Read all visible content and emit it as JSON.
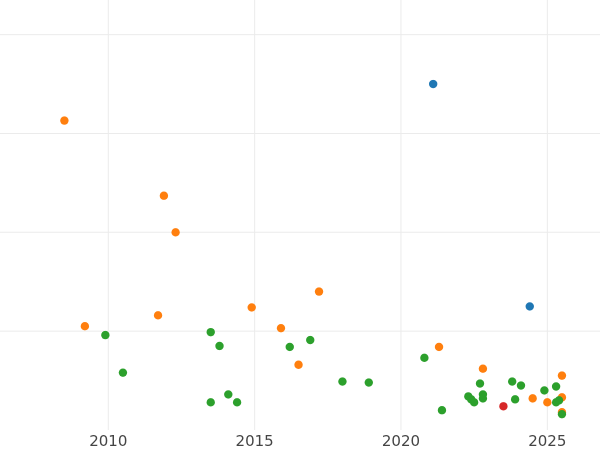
{
  "chart_data": {
    "type": "scatter",
    "title": "",
    "xlabel": "",
    "ylabel": "",
    "grid": true,
    "legend": "none",
    "xlim": [
      2006.3,
      2026.8
    ],
    "ylim": [
      0,
      4.35
    ],
    "xticks": [
      2010,
      2015,
      2020,
      2025
    ],
    "xtick_labels": [
      "2010",
      "2015",
      "2020",
      "2025"
    ],
    "yticks": [
      1,
      2,
      3,
      4
    ],
    "series": [
      {
        "color": "#1f77b4",
        "points": [
          {
            "x": 2021.1,
            "y": 3.5
          },
          {
            "x": 2024.4,
            "y": 1.25
          }
        ]
      },
      {
        "color": "#ff7f0e",
        "points": [
          {
            "x": 2008.5,
            "y": 3.13
          },
          {
            "x": 2009.2,
            "y": 1.05
          },
          {
            "x": 2011.7,
            "y": 1.16
          },
          {
            "x": 2011.9,
            "y": 2.37
          },
          {
            "x": 2012.3,
            "y": 2.0
          },
          {
            "x": 2014.9,
            "y": 1.24
          },
          {
            "x": 2015.9,
            "y": 1.03
          },
          {
            "x": 2016.5,
            "y": 0.66
          },
          {
            "x": 2017.2,
            "y": 1.4
          },
          {
            "x": 2021.3,
            "y": 0.84
          },
          {
            "x": 2022.8,
            "y": 0.62
          },
          {
            "x": 2024.5,
            "y": 0.32
          },
          {
            "x": 2025.0,
            "y": 0.28
          },
          {
            "x": 2025.5,
            "y": 0.55
          },
          {
            "x": 2025.5,
            "y": 0.33
          },
          {
            "x": 2025.5,
            "y": 0.18
          }
        ]
      },
      {
        "color": "#2ca02c",
        "points": [
          {
            "x": 2009.9,
            "y": 0.96
          },
          {
            "x": 2010.5,
            "y": 0.58
          },
          {
            "x": 2013.5,
            "y": 0.99
          },
          {
            "x": 2013.8,
            "y": 0.85
          },
          {
            "x": 2013.5,
            "y": 0.28
          },
          {
            "x": 2014.1,
            "y": 0.36
          },
          {
            "x": 2014.4,
            "y": 0.28
          },
          {
            "x": 2016.2,
            "y": 0.84
          },
          {
            "x": 2016.9,
            "y": 0.91
          },
          {
            "x": 2018.0,
            "y": 0.49
          },
          {
            "x": 2018.9,
            "y": 0.48
          },
          {
            "x": 2020.8,
            "y": 0.73
          },
          {
            "x": 2021.4,
            "y": 0.2
          },
          {
            "x": 2022.3,
            "y": 0.34
          },
          {
            "x": 2022.4,
            "y": 0.31
          },
          {
            "x": 2022.5,
            "y": 0.28
          },
          {
            "x": 2022.7,
            "y": 0.47
          },
          {
            "x": 2022.8,
            "y": 0.36
          },
          {
            "x": 2022.8,
            "y": 0.32
          },
          {
            "x": 2023.8,
            "y": 0.49
          },
          {
            "x": 2023.9,
            "y": 0.31
          },
          {
            "x": 2024.1,
            "y": 0.45
          },
          {
            "x": 2024.9,
            "y": 0.4
          },
          {
            "x": 2025.3,
            "y": 0.44
          },
          {
            "x": 2025.3,
            "y": 0.28
          },
          {
            "x": 2025.4,
            "y": 0.3
          },
          {
            "x": 2025.5,
            "y": 0.16
          }
        ]
      },
      {
        "color": "#d62728",
        "points": [
          {
            "x": 2023.5,
            "y": 0.24
          }
        ]
      }
    ]
  }
}
